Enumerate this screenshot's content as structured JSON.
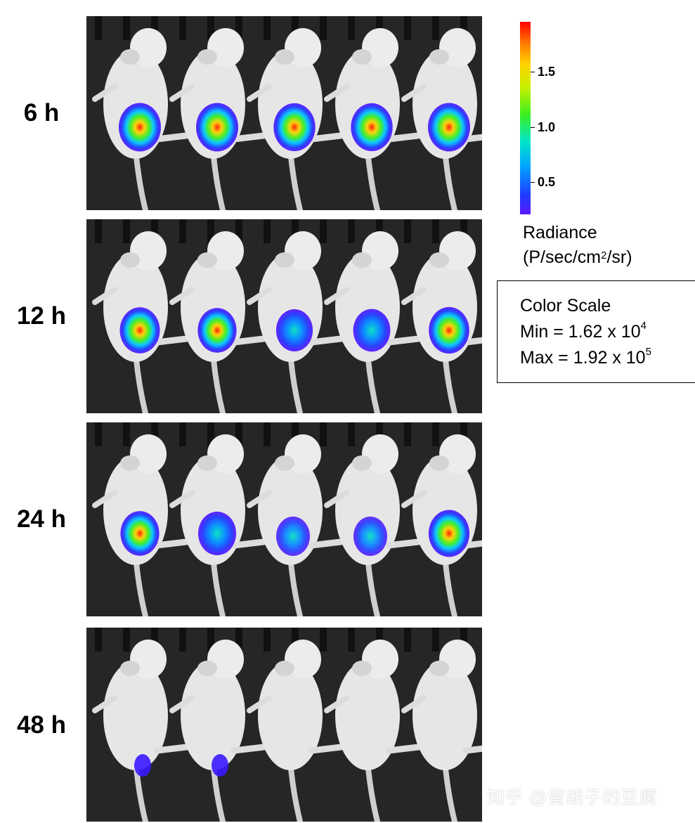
{
  "rows": [
    {
      "time_label": "6 h"
    },
    {
      "time_label": "12 h"
    },
    {
      "time_label": "24 h"
    },
    {
      "time_label": "48 h"
    }
  ],
  "colorbar": {
    "ticks": [
      "1.5",
      "1.0",
      "0.5"
    ],
    "title_line1": "Radiance",
    "unit_main": "(P/sec/cm",
    "unit_sup": "2",
    "unit_tail": "/sr)"
  },
  "color_scale": {
    "title": "Color Scale",
    "min_text": "Min = 1.62 x 10",
    "min_exp": "4",
    "max_text": "Max = 1.92 x 10",
    "max_exp": "5"
  },
  "watermark": "知乎 @留胡子的豆腐",
  "colors": {
    "panel_background": "#262626",
    "mouse_body": "#e6e6e6"
  }
}
